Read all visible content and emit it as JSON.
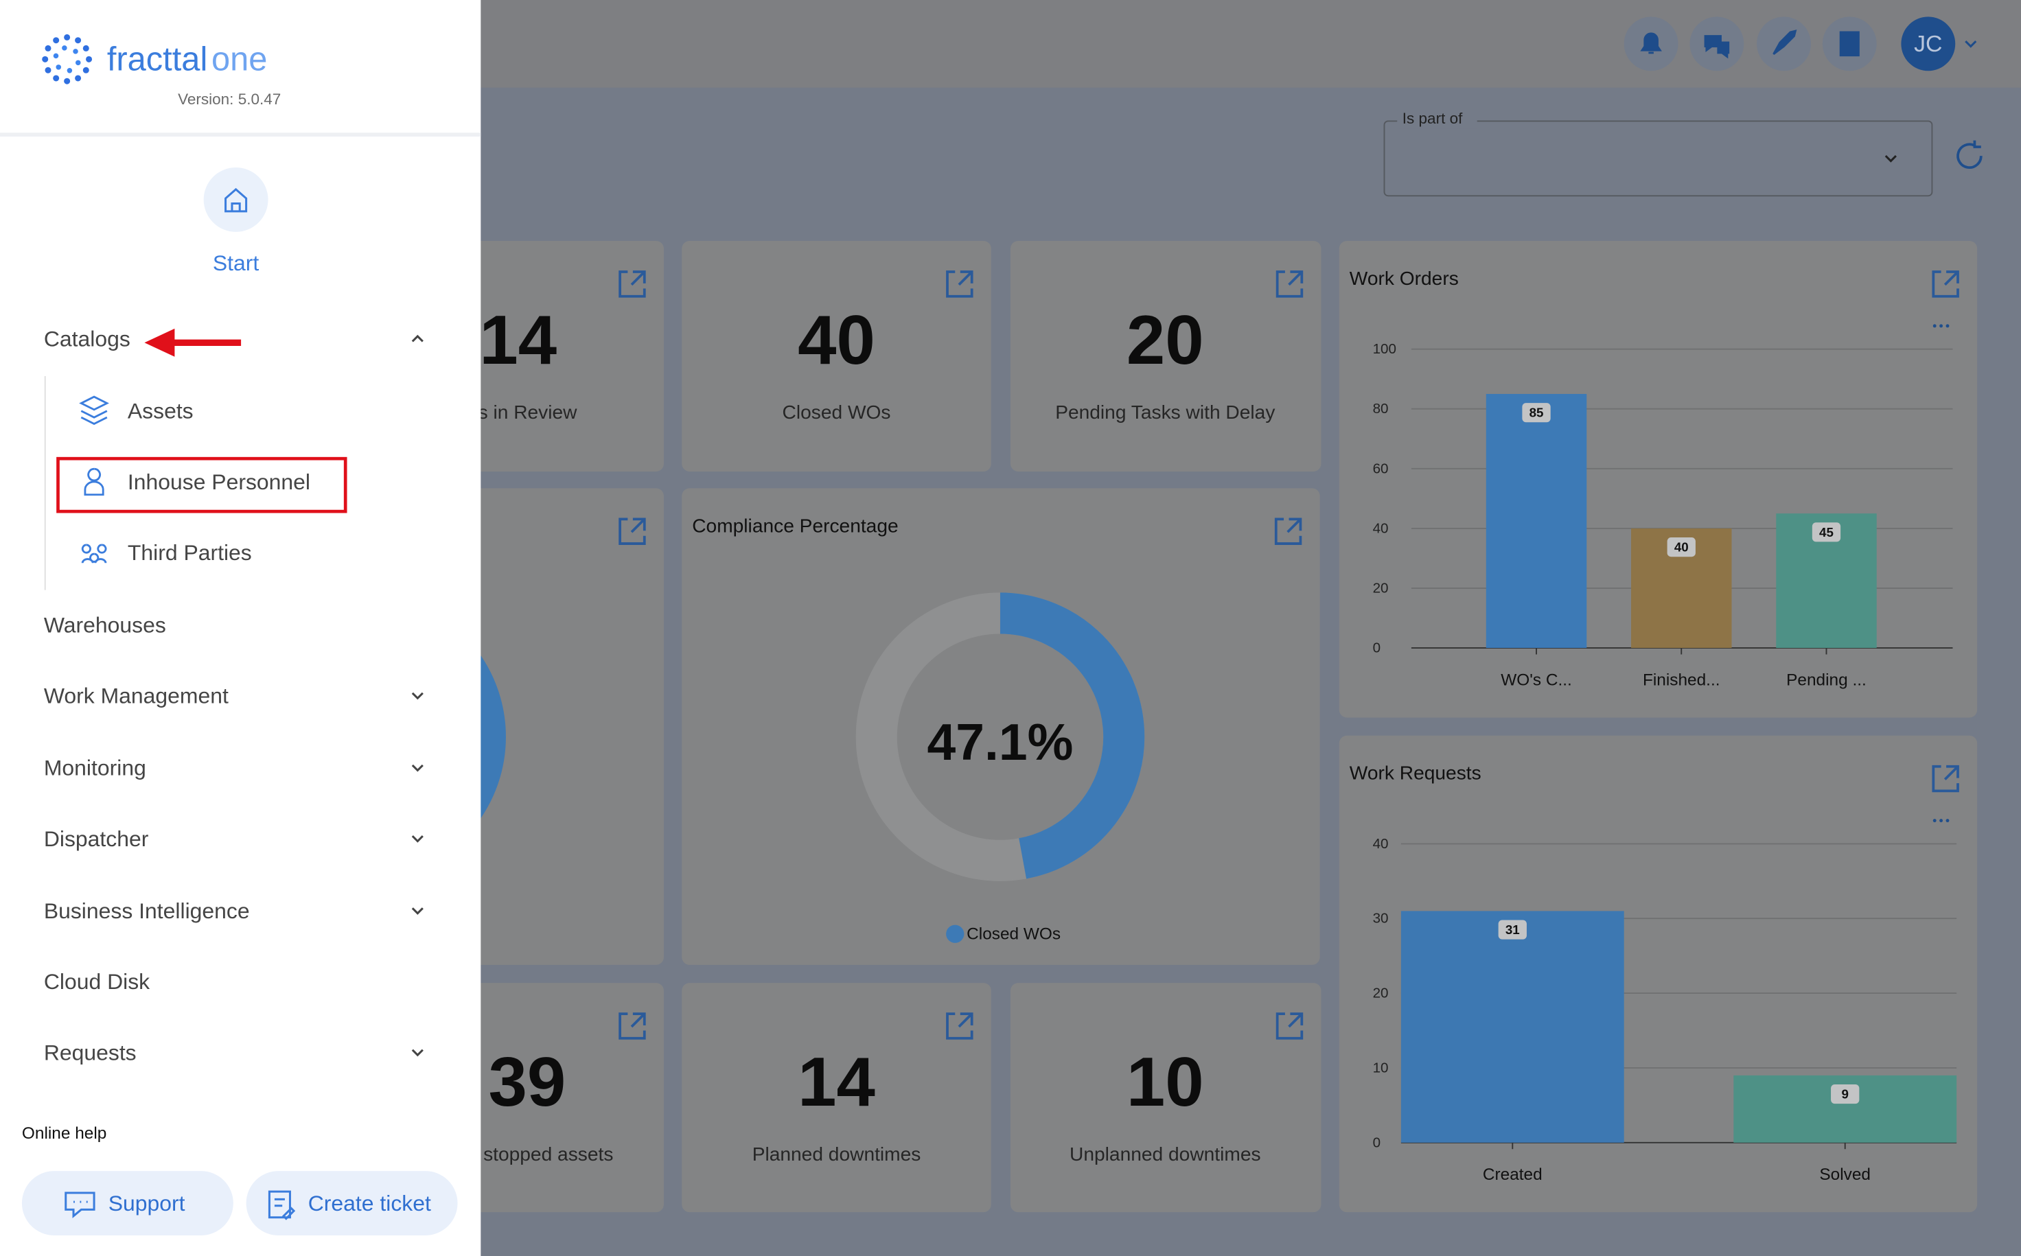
{
  "sidebar": {
    "brand": "fracttal",
    "brand_suffix": "one",
    "version": "Version: 5.0.47",
    "start": "Start",
    "menu": [
      {
        "label": "Catalogs",
        "expanded": true,
        "children": [
          "Assets",
          "Inhouse Personnel",
          "Third Parties"
        ]
      },
      {
        "label": "Warehouses"
      },
      {
        "label": "Work Management",
        "expandable": true
      },
      {
        "label": "Monitoring",
        "expandable": true
      },
      {
        "label": "Dispatcher",
        "expandable": true
      },
      {
        "label": "Business Intelligence",
        "expandable": true
      },
      {
        "label": "Cloud Disk"
      },
      {
        "label": "Requests",
        "expandable": true
      }
    ],
    "online_help": "Online help",
    "buttons": [
      "Support",
      "Create ticket"
    ]
  },
  "header": {
    "avatar": "JC"
  },
  "filter": {
    "label": "Is part of"
  },
  "kpis": [
    {
      "value": 14,
      "label": "s in Review"
    },
    {
      "value": 40,
      "label": "Closed WOs"
    },
    {
      "value": 20,
      "label": "Pending Tasks with Delay"
    },
    {
      "value": 39,
      "label": "stopped assets"
    },
    {
      "value": 14,
      "label": "Planned downtimes"
    },
    {
      "value": 10,
      "label": "Unplanned downtimes"
    }
  ],
  "chart_data": [
    {
      "type": "bar",
      "title": "Work Orders",
      "categories": [
        "WO's C...",
        "Finished...",
        "Pending ..."
      ],
      "values": [
        85,
        40,
        45
      ],
      "colors": [
        "#3d7ab6",
        "#8e7447",
        "#4e9186"
      ],
      "ylim": [
        0,
        100
      ],
      "yticks": [
        0,
        20,
        40,
        60,
        80,
        100
      ],
      "grid": true
    },
    {
      "type": "bar",
      "title": "Work Requests",
      "categories": [
        "Created",
        "Solved"
      ],
      "values": [
        31,
        9
      ],
      "colors": [
        "#3d78b2",
        "#4e9186"
      ],
      "ylim": [
        0,
        40
      ],
      "yticks": [
        0,
        10,
        20,
        30,
        40
      ],
      "grid": true
    },
    {
      "type": "donut",
      "title": "Compliance Percentage",
      "categories": [
        "Closed WOs"
      ],
      "values": [
        47.1
      ],
      "value_labels": [
        "47.1%"
      ],
      "colors": [
        "#3d7ab6"
      ],
      "track_color": "#8f9091"
    }
  ]
}
